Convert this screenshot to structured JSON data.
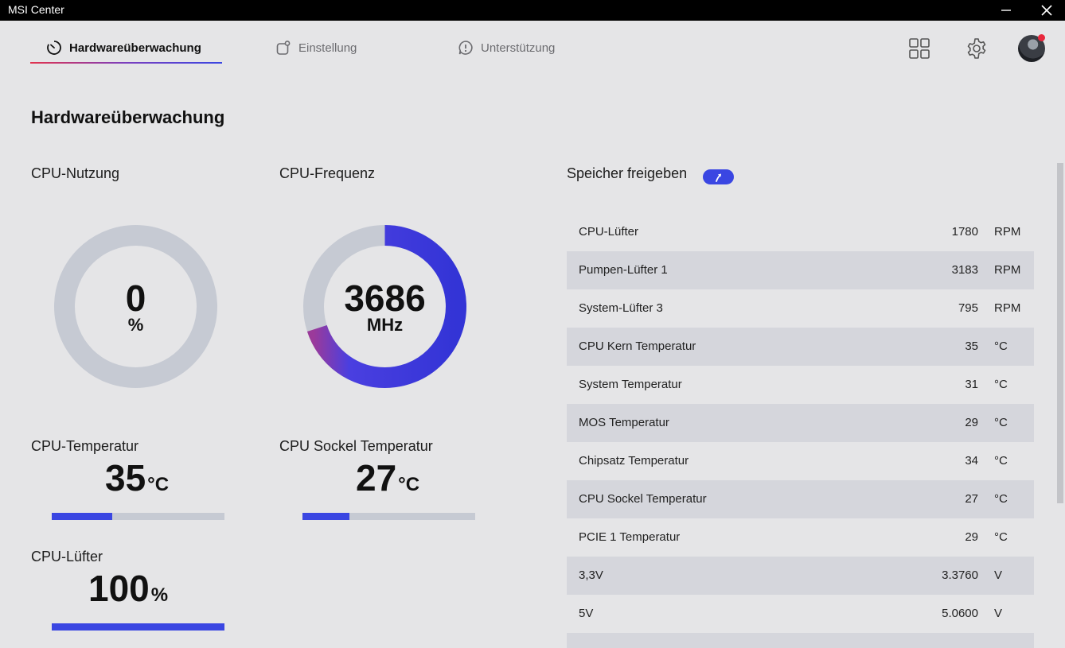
{
  "window": {
    "title": "MSI Center"
  },
  "nav": {
    "tabs": [
      {
        "label": "Hardwareüberwachung",
        "icon": "gauge-icon",
        "active": true
      },
      {
        "label": "Einstellung",
        "icon": "settings-square-icon",
        "active": false
      },
      {
        "label": "Unterstützung",
        "icon": "support-icon",
        "active": false
      }
    ],
    "accent_gradient": [
      "#e2334e",
      "#7a3fbf",
      "#3a46e2"
    ]
  },
  "page": {
    "title": "Hardwareüberwachung"
  },
  "cpu_usage": {
    "label": "CPU-Nutzung",
    "value": "0",
    "unit": "%",
    "fraction": 0
  },
  "cpu_freq": {
    "label": "CPU-Frequenz",
    "value": "3686",
    "unit": "MHz",
    "fraction": 0.7
  },
  "cpu_temp": {
    "label": "CPU-Temperatur",
    "value": "35",
    "unit": "°C",
    "fraction": 0.35
  },
  "socket_temp": {
    "label": "CPU Sockel Temperatur",
    "value": "27",
    "unit": "°C",
    "fraction": 0.27
  },
  "cpu_fan": {
    "label": "CPU-Lüfter",
    "value": "100",
    "unit": "%",
    "fraction": 1.0
  },
  "memory": {
    "label": "Speicher freigeben"
  },
  "sensors": [
    {
      "name": "CPU-Lüfter",
      "value": "1780",
      "unit": "RPM"
    },
    {
      "name": "Pumpen-Lüfter 1",
      "value": "3183",
      "unit": "RPM"
    },
    {
      "name": "System-Lüfter 3",
      "value": "795",
      "unit": "RPM"
    },
    {
      "name": "CPU Kern Temperatur",
      "value": "35",
      "unit": "°C"
    },
    {
      "name": "System Temperatur",
      "value": "31",
      "unit": "°C"
    },
    {
      "name": "MOS Temperatur",
      "value": "29",
      "unit": "°C"
    },
    {
      "name": "Chipsatz Temperatur",
      "value": "34",
      "unit": "°C"
    },
    {
      "name": "CPU Sockel Temperatur",
      "value": "27",
      "unit": "°C"
    },
    {
      "name": "PCIE 1 Temperatur",
      "value": "29",
      "unit": "°C"
    },
    {
      "name": "3,3V",
      "value": "3.3760",
      "unit": "V"
    },
    {
      "name": "5V",
      "value": "5.0600",
      "unit": "V"
    },
    {
      "name": "",
      "value": "",
      "unit": ""
    }
  ],
  "colors": {
    "background": "#e5e5e7",
    "accent": "#3a46e2",
    "track": "#c6cad3",
    "row_alt": "#d5d6dc",
    "notification": "#e8283d"
  }
}
